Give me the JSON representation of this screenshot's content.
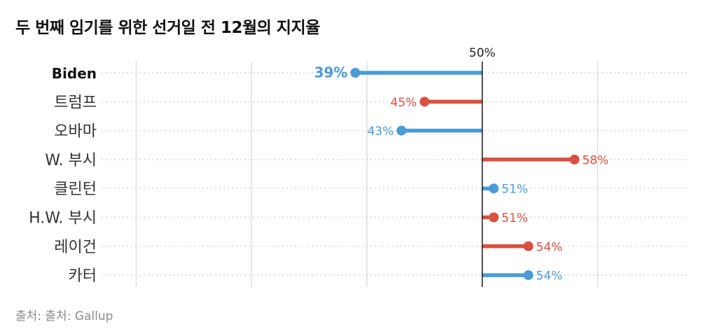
{
  "title": "두 번째 임기를 위한 선거일 전 12월의 지지율",
  "source": "출처: 출처: Gallup",
  "colors": {
    "democrat": "#4a9bd6",
    "republican": "#d95040",
    "gridline": "#dddddd",
    "reference": "#111111",
    "label": "#333333"
  },
  "chart_data": {
    "type": "lollipop",
    "reference_value": 50,
    "reference_label": "50%",
    "xlim": [
      17,
      68
    ],
    "gridlines": [
      20,
      30,
      40,
      50,
      60
    ],
    "categories": [
      "Biden",
      "트럼프",
      "오바마",
      "W. 부시",
      "클린턴",
      "H.W. 부시",
      "레이건",
      "카터"
    ],
    "values": [
      39,
      45,
      43,
      58,
      51,
      51,
      54,
      54
    ],
    "value_labels": [
      "39%",
      "45%",
      "43%",
      "58%",
      "51%",
      "51%",
      "54%",
      "54%"
    ],
    "parties": [
      "democrat",
      "republican",
      "democrat",
      "republican",
      "democrat",
      "republican",
      "republican",
      "democrat"
    ],
    "highlight": "Biden"
  }
}
